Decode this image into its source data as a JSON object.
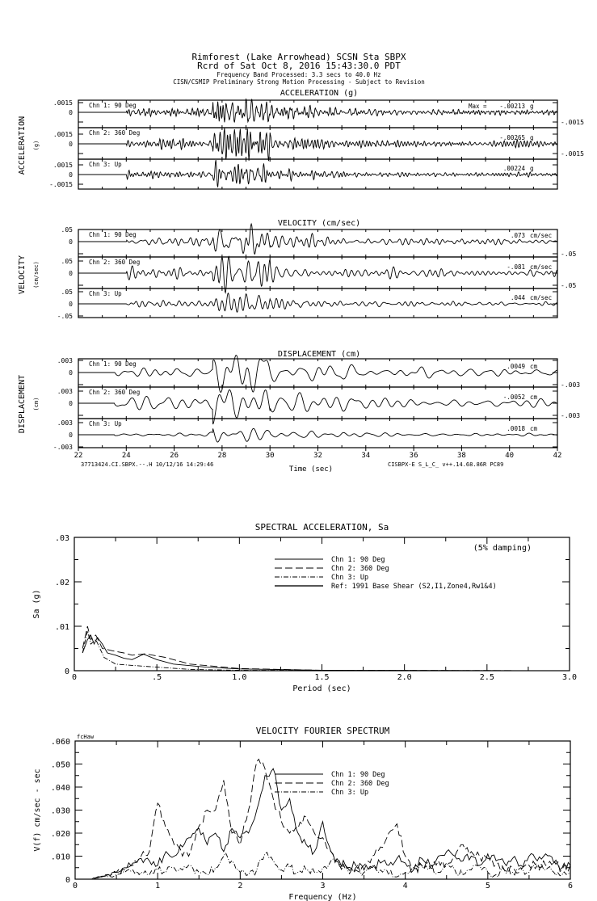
{
  "header": {
    "line1": "Rimforest (Lake Arrowhead)    SCSN Sta SBPX",
    "line2": "Rcrd of Sat Oct  8, 2016 15:43:30.0 PDT",
    "line3": "Frequency Band Processed: 3.3 secs to 40.0 Hz",
    "line4": "CISN/CSMIP Preliminary Strong Motion Processing - Subject to Revision"
  },
  "time_axis": {
    "label": "Time (sec)",
    "range": [
      22,
      42
    ],
    "ticks": [
      "22",
      "24",
      "26",
      "28",
      "30",
      "32",
      "34",
      "36",
      "38",
      "40",
      "42"
    ],
    "footer_left": "37713424.CI.SBPX.--.H 10/12/16 14:29:46",
    "footer_right": "CISBPX-E  S_L_C_  v++.14.68.86R PC89"
  },
  "max_prefix": "Max =",
  "chart_data": [
    {
      "type": "line",
      "title": "ACCELERATION (g)",
      "ylabel": "ACCELERATION",
      "yunit": "(g)",
      "xlabel": "Time (sec)",
      "xlim": [
        22,
        42
      ],
      "ylim": [
        -0.0015,
        0.0015
      ],
      "yticks": [
        ".0015",
        "0",
        "-.0015"
      ],
      "series": [
        {
          "name": "Chn 1: 90 Deg",
          "max_label": "-.00213",
          "max": -0.00213,
          "unit": "g"
        },
        {
          "name": "Chn 2: 360 Deg",
          "max_label": "-.00265",
          "max": -0.00265,
          "unit": "g"
        },
        {
          "name": "Chn 3: Up",
          "max_label": ".00224",
          "max": 0.00224,
          "unit": "g"
        }
      ]
    },
    {
      "type": "line",
      "title": "VELOCITY (cm/sec)",
      "ylabel": "VELOCITY",
      "yunit": "(cm/sec)",
      "xlabel": "Time (sec)",
      "xlim": [
        22,
        42
      ],
      "ylim": [
        -0.05,
        0.05
      ],
      "yticks": [
        ".05",
        "0",
        "-.05"
      ],
      "series": [
        {
          "name": "Chn 1: 90 Deg",
          "max_label": ".073",
          "max": 0.073,
          "unit": "cm/sec"
        },
        {
          "name": "Chn 2: 360 Deg",
          "max_label": "-.081",
          "max": -0.081,
          "unit": "cm/sec"
        },
        {
          "name": "Chn 3: Up",
          "max_label": ".044",
          "max": 0.044,
          "unit": "cm/sec"
        }
      ]
    },
    {
      "type": "line",
      "title": "DISPLACEMENT (cm)",
      "ylabel": "DISPLACEMENT",
      "yunit": "(cm)",
      "xlabel": "Time (sec)",
      "xlim": [
        22,
        42
      ],
      "ylim": [
        -0.003,
        0.003
      ],
      "yticks": [
        ".003",
        "0",
        "-.003"
      ],
      "series": [
        {
          "name": "Chn 1: 90 Deg",
          "max_label": ".0049",
          "max": 0.0049,
          "unit": "cm"
        },
        {
          "name": "Chn 2: 360 Deg",
          "max_label": "-.0052",
          "max": -0.0052,
          "unit": "cm"
        },
        {
          "name": "Chn 3: Up",
          "max_label": ".0018",
          "max": 0.0018,
          "unit": "cm"
        }
      ]
    },
    {
      "type": "line",
      "title": "SPECTRAL ACCELERATION, Sa",
      "xlabel": "Period (sec)",
      "ylabel": "Sa  (g)",
      "note": "(5% damping)",
      "xlim": [
        0,
        3
      ],
      "ylim": [
        0,
        0.03
      ],
      "xticks": [
        "0",
        ".5",
        "1.0",
        "1.5",
        "2.0",
        "2.5",
        "3.0"
      ],
      "yticks": [
        ".03",
        ".02",
        ".01",
        "0"
      ],
      "grid": false,
      "legend_position": "top-right",
      "legend": [
        "Chn 1: 90 Deg",
        "Chn 2: 360 Deg",
        "Chn 3: Up",
        "Ref: 1991 Base Shear (S2,I1,Zone4,Rw1&4)"
      ],
      "series": [
        {
          "name": "Chn 1: 90 Deg",
          "style": "solid",
          "points": [
            [
              0.05,
              0.004
            ],
            [
              0.08,
              0.007
            ],
            [
              0.1,
              0.008
            ],
            [
              0.12,
              0.006
            ],
            [
              0.14,
              0.0075
            ],
            [
              0.17,
              0.006
            ],
            [
              0.2,
              0.004
            ],
            [
              0.25,
              0.0035
            ],
            [
              0.3,
              0.0028
            ],
            [
              0.35,
              0.0025
            ],
            [
              0.42,
              0.0037
            ],
            [
              0.5,
              0.0025
            ],
            [
              0.6,
              0.0015
            ],
            [
              0.8,
              0.0008
            ],
            [
              1.0,
              0.0004
            ],
            [
              1.5,
              0.0001
            ],
            [
              2.0,
              5e-05
            ],
            [
              3.0,
              0
            ]
          ]
        },
        {
          "name": "Chn 2: 360 Deg",
          "style": "dashed",
          "points": [
            [
              0.05,
              0.005
            ],
            [
              0.08,
              0.01
            ],
            [
              0.1,
              0.007
            ],
            [
              0.13,
              0.008
            ],
            [
              0.17,
              0.005
            ],
            [
              0.23,
              0.0045
            ],
            [
              0.3,
              0.004
            ],
            [
              0.35,
              0.0035
            ],
            [
              0.43,
              0.0038
            ],
            [
              0.55,
              0.003
            ],
            [
              0.7,
              0.0015
            ],
            [
              1.0,
              0.0005
            ],
            [
              1.5,
              0.0001
            ],
            [
              3.0,
              0
            ]
          ]
        },
        {
          "name": "Chn 3: Up",
          "style": "dashdot",
          "points": [
            [
              0.05,
              0.004
            ],
            [
              0.08,
              0.009
            ],
            [
              0.1,
              0.006
            ],
            [
              0.13,
              0.007
            ],
            [
              0.18,
              0.003
            ],
            [
              0.25,
              0.0015
            ],
            [
              0.35,
              0.0012
            ],
            [
              0.5,
              0.0008
            ],
            [
              0.7,
              0.0003
            ],
            [
              1.0,
              0.0001
            ],
            [
              3.0,
              0
            ]
          ]
        }
      ]
    },
    {
      "type": "line",
      "title": "VELOCITY FOURIER SPECTRUM",
      "tag": "fcHaw",
      "xlabel": "Frequency (Hz)",
      "ylabel": "V(f)   cm/sec - sec",
      "xlim": [
        0,
        6
      ],
      "ylim": [
        0,
        0.06
      ],
      "xticks": [
        "0",
        "1",
        "2",
        "3",
        "4",
        "5",
        "6"
      ],
      "yticks": [
        ".060",
        ".050",
        ".040",
        ".030",
        ".020",
        ".010",
        "0"
      ],
      "grid": false,
      "legend_position": "top-center",
      "legend": [
        "Chn 1: 90 Deg",
        "Chn 2: 360 Deg",
        "Chn 3: Up"
      ],
      "x_step": 0.1,
      "series": [
        {
          "name": "Chn 1: 90 Deg",
          "style": "solid",
          "values": [
            0,
            0,
            0,
            0.001,
            0.002,
            0.003,
            0.005,
            0.007,
            0.009,
            0.008,
            0.006,
            0.012,
            0.01,
            0.014,
            0.018,
            0.022,
            0.015,
            0.02,
            0.012,
            0.022,
            0.018,
            0.02,
            0.03,
            0.045,
            0.048,
            0.03,
            0.035,
            0.02,
            0.015,
            0.012,
            0.025,
            0.012,
            0.008,
            0.005,
            0.006,
            0.004,
            0.005,
            0.007,
            0.006,
            0.009,
            0.007,
            0.004,
            0.009,
            0.006,
            0.01,
            0.012,
            0.01,
            0.008,
            0.01,
            0.006,
            0.011,
            0.008,
            0.007,
            0.009,
            0.006,
            0.01,
            0.008,
            0.011,
            0.007,
            0.005,
            0.006
          ]
        },
        {
          "name": "Chn 2: 360 Deg",
          "style": "dashed",
          "values": [
            0,
            0,
            0,
            0.001,
            0.002,
            0.003,
            0.004,
            0.006,
            0.01,
            0.012,
            0.033,
            0.022,
            0.015,
            0.01,
            0.012,
            0.023,
            0.03,
            0.03,
            0.043,
            0.02,
            0.015,
            0.03,
            0.051,
            0.048,
            0.035,
            0.025,
            0.02,
            0.022,
            0.027,
            0.02,
            0.018,
            0.012,
            0.006,
            0.005,
            0.004,
            0.006,
            0.01,
            0.014,
            0.02,
            0.024,
            0.01,
            0.005,
            0.006,
            0.005,
            0.008,
            0.006,
            0.01,
            0.015,
            0.012,
            0.01,
            0.009,
            0.006,
            0.004,
            0.005,
            0.004,
            0.006,
            0.007,
            0.006,
            0.008,
            0.004,
            0.006
          ]
        },
        {
          "name": "Chn 3: Up",
          "style": "dashdot",
          "values": [
            0,
            0,
            0,
            0.001,
            0.001,
            0.002,
            0.003,
            0.004,
            0.003,
            0.002,
            0.004,
            0.003,
            0.005,
            0.004,
            0.006,
            0.003,
            0.002,
            0.005,
            0.01,
            0.008,
            0.003,
            0.002,
            0.004,
            0.011,
            0.008,
            0.004,
            0.005,
            0.003,
            0.004,
            0.003,
            0.005,
            0.008,
            0.007,
            0.004,
            0.005,
            0.003,
            0.006,
            0.004,
            0.002,
            0.001,
            0.003,
            0.004,
            0.006,
            0.005,
            0.003,
            0.007,
            0.004,
            0.002,
            0.004,
            0.006,
            0.003,
            0.002,
            0.004,
            0.003,
            0.005,
            0.003,
            0.006,
            0.004,
            0.003,
            0.002,
            0.003
          ]
        }
      ]
    }
  ]
}
